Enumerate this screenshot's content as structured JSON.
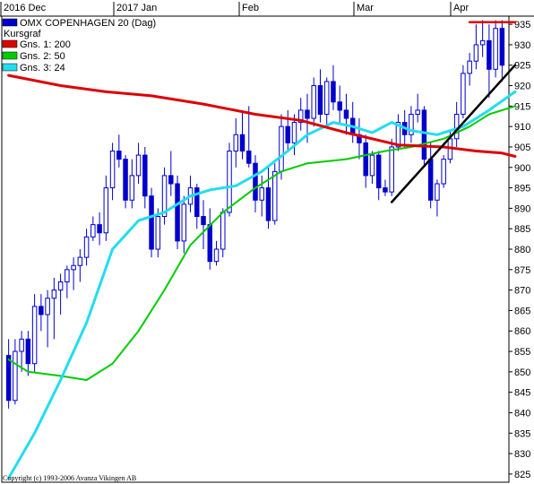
{
  "chart_data": {
    "type": "line",
    "title": "OMX COPENHAGEN 20 (Dag)",
    "subtitle": "Kursgraf",
    "copyright": "Copyright (c) 1993-2006 Avanza Vikingen AB",
    "x_axis": {
      "position": "top",
      "labels": [
        "2016 Dec",
        "2017 Jan",
        "Feb",
        "Mar",
        "Apr"
      ]
    },
    "y_axis": {
      "position": "right",
      "ylim": [
        823,
        937
      ],
      "ticks": [
        825,
        830,
        835,
        840,
        845,
        850,
        855,
        860,
        865,
        870,
        875,
        880,
        885,
        890,
        895,
        900,
        905,
        910,
        915,
        920,
        925,
        930,
        935
      ]
    },
    "grid": false,
    "legend_position": "top-left",
    "colors": {
      "up": "#ffffff",
      "down": "#0000cc",
      "candle_outline": "#0000cc",
      "ma200": "#dd0000",
      "ma50": "#00cc00",
      "ma24": "#22ddee",
      "trendline": "#000000",
      "resistance": "#dd0000"
    },
    "legend": [
      {
        "label": "OMX COPENHAGEN 20 (Dag)",
        "color": "#0000cc"
      },
      {
        "label": "Gns. 1: 200",
        "color": "#dd0000"
      },
      {
        "label": "Gns. 2: 50",
        "color": "#00cc00"
      },
      {
        "label": "Gns. 3: 24",
        "color": "#22ddee"
      }
    ],
    "ohlc": [
      [
        854,
        858,
        841,
        843
      ],
      [
        843,
        858,
        842,
        855
      ],
      [
        855,
        860,
        850,
        858
      ],
      [
        858,
        860,
        849,
        852
      ],
      [
        852,
        869,
        850,
        866
      ],
      [
        866,
        869,
        860,
        864
      ],
      [
        864,
        870,
        856,
        868
      ],
      [
        868,
        873,
        858,
        870
      ],
      [
        870,
        874,
        864,
        872
      ],
      [
        872,
        876,
        868,
        875
      ],
      [
        875,
        878,
        870,
        876
      ],
      [
        876,
        880,
        872,
        878
      ],
      [
        878,
        885,
        876,
        883
      ],
      [
        883,
        888,
        882,
        886
      ],
      [
        886,
        889,
        881,
        884
      ],
      [
        884,
        898,
        882,
        895
      ],
      [
        895,
        906,
        892,
        904
      ],
      [
        904,
        908,
        900,
        902
      ],
      [
        902,
        903,
        890,
        892
      ],
      [
        892,
        902,
        890,
        898
      ],
      [
        898,
        906,
        896,
        903
      ],
      [
        903,
        905,
        890,
        893
      ],
      [
        893,
        895,
        878,
        880
      ],
      [
        880,
        890,
        878,
        888
      ],
      [
        888,
        900,
        886,
        898
      ],
      [
        898,
        904,
        893,
        896
      ],
      [
        896,
        898,
        880,
        882
      ],
      [
        882,
        893,
        879,
        891
      ],
      [
        891,
        898,
        889,
        895
      ],
      [
        895,
        896,
        885,
        888
      ],
      [
        888,
        892,
        880,
        886
      ],
      [
        886,
        890,
        875,
        877
      ],
      [
        877,
        882,
        876,
        880
      ],
      [
        880,
        890,
        878,
        889
      ],
      [
        889,
        906,
        888,
        904
      ],
      [
        904,
        912,
        900,
        908
      ],
      [
        908,
        914,
        902,
        904
      ],
      [
        904,
        915,
        900,
        901
      ],
      [
        901,
        903,
        889,
        892
      ],
      [
        892,
        898,
        888,
        895
      ],
      [
        895,
        900,
        885,
        887
      ],
      [
        887,
        901,
        886,
        899
      ],
      [
        899,
        913,
        897,
        910
      ],
      [
        910,
        914,
        904,
        906
      ],
      [
        906,
        913,
        903,
        911
      ],
      [
        911,
        917,
        909,
        914
      ],
      [
        914,
        918,
        906,
        912
      ],
      [
        912,
        922,
        910,
        920
      ],
      [
        920,
        924,
        911,
        913
      ],
      [
        913,
        922,
        910,
        921
      ],
      [
        921,
        925,
        914,
        916
      ],
      [
        916,
        920,
        911,
        914
      ],
      [
        914,
        918,
        908,
        912
      ],
      [
        912,
        916,
        906,
        908
      ],
      [
        908,
        912,
        902,
        906
      ],
      [
        906,
        908,
        895,
        898
      ],
      [
        898,
        904,
        896,
        903
      ],
      [
        903,
        904,
        892,
        895
      ],
      [
        895,
        897,
        893,
        894
      ],
      [
        894,
        907,
        893,
        905
      ],
      [
        905,
        913,
        904,
        911
      ],
      [
        911,
        914,
        905,
        908
      ],
      [
        908,
        915,
        906,
        913
      ],
      [
        913,
        918,
        911,
        914
      ],
      [
        914,
        915,
        900,
        902
      ],
      [
        902,
        906,
        890,
        892
      ],
      [
        892,
        897,
        888,
        896
      ],
      [
        896,
        903,
        895,
        902
      ],
      [
        902,
        909,
        901,
        907
      ],
      [
        907,
        916,
        905,
        913
      ],
      [
        913,
        925,
        912,
        923
      ],
      [
        923,
        928,
        920,
        926
      ],
      [
        926,
        935,
        924,
        930
      ],
      [
        930,
        936,
        927,
        931
      ],
      [
        931,
        935,
        917,
        924
      ],
      [
        924,
        936,
        922,
        934
      ],
      [
        934,
        936,
        921,
        925
      ]
    ],
    "ma200": [
      [
        0,
        922.5
      ],
      [
        8,
        920
      ],
      [
        15,
        918.5
      ],
      [
        22,
        917.5
      ],
      [
        30,
        915.5
      ],
      [
        38,
        913
      ],
      [
        45,
        911.5
      ],
      [
        52,
        908.5
      ],
      [
        60,
        905.5
      ],
      [
        67,
        905
      ],
      [
        72,
        904
      ],
      [
        76,
        903.5
      ],
      [
        78,
        902.7
      ]
    ],
    "ma50": [
      [
        0,
        853
      ],
      [
        3,
        850
      ],
      [
        8,
        849
      ],
      [
        12,
        848
      ],
      [
        16,
        852
      ],
      [
        20,
        860
      ],
      [
        24,
        870
      ],
      [
        28,
        881
      ],
      [
        33,
        889
      ],
      [
        38,
        895
      ],
      [
        42,
        899
      ],
      [
        46,
        901
      ],
      [
        52,
        902
      ],
      [
        58,
        904
      ],
      [
        62,
        905
      ],
      [
        67,
        907
      ],
      [
        71,
        910
      ],
      [
        74,
        913
      ],
      [
        78,
        915
      ]
    ],
    "ma24": [
      [
        0,
        824
      ],
      [
        4,
        835
      ],
      [
        8,
        848
      ],
      [
        12,
        862
      ],
      [
        16,
        880
      ],
      [
        20,
        887
      ],
      [
        24,
        889
      ],
      [
        28,
        893
      ],
      [
        31,
        894.5
      ],
      [
        35,
        895.5
      ],
      [
        39,
        899
      ],
      [
        43,
        904
      ],
      [
        46,
        908
      ],
      [
        50,
        911
      ],
      [
        53,
        910
      ],
      [
        56,
        908.5
      ],
      [
        59,
        911
      ],
      [
        62,
        909
      ],
      [
        66,
        908
      ],
      [
        70,
        910
      ],
      [
        74,
        914
      ],
      [
        78,
        918.5
      ]
    ],
    "trendline": [
      [
        59,
        891.5
      ],
      [
        78,
        925
      ]
    ],
    "resistance": [
      [
        71,
        935.5
      ],
      [
        78,
        935.5
      ]
    ]
  }
}
